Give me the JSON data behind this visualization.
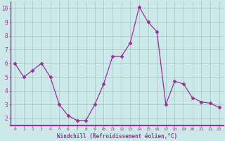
{
  "x": [
    0,
    1,
    2,
    3,
    4,
    5,
    6,
    7,
    8,
    9,
    10,
    11,
    12,
    13,
    14,
    15,
    16,
    17,
    18,
    19,
    20,
    21,
    22,
    23
  ],
  "y": [
    6.0,
    5.0,
    5.5,
    6.0,
    5.0,
    3.0,
    2.2,
    1.85,
    1.85,
    3.0,
    4.5,
    6.5,
    6.5,
    7.5,
    10.1,
    9.0,
    8.3,
    3.0,
    4.7,
    4.5,
    3.5,
    3.2,
    3.1,
    2.8
  ],
  "line_color": "#993399",
  "marker": "D",
  "marker_size": 2.5,
  "bg_color": "#cce8e8",
  "grid_color": "#aacccc",
  "xlabel": "Windchill (Refroidissement éolien,°C)",
  "ylim": [
    1.5,
    10.5
  ],
  "yticks": [
    2,
    3,
    4,
    5,
    6,
    7,
    8,
    9,
    10
  ],
  "xlim": [
    -0.5,
    23.5
  ],
  "xticks": [
    0,
    1,
    2,
    3,
    4,
    5,
    6,
    7,
    8,
    9,
    10,
    11,
    12,
    13,
    14,
    15,
    16,
    17,
    18,
    19,
    20,
    21,
    22,
    23
  ],
  "tick_color": "#993399",
  "label_color": "#993399",
  "axis_color": "#993399",
  "spine_color": "#993399"
}
